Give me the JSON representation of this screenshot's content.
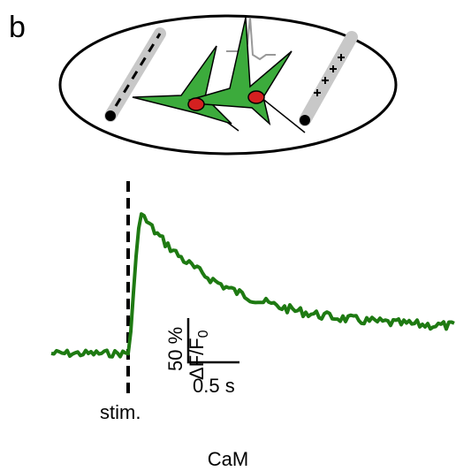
{
  "panel_label": "b",
  "scale_bar": {
    "y_label": "50 %",
    "y_unit": "ΔF/F",
    "y_unit_subscript": "0",
    "x_label": "0.5 s"
  },
  "stimulus_label": "stim.",
  "caption": "CaM"
}
